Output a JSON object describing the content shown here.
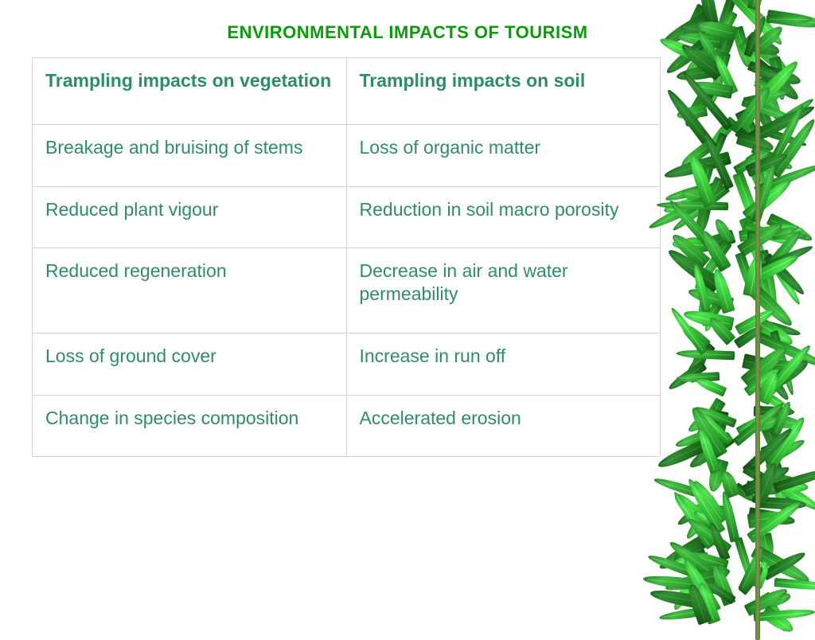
{
  "title": {
    "text": "ENVIRONMENTAL IMPACTS OF TOURISM",
    "color": "#0b9b0b",
    "fontsize": 22
  },
  "table": {
    "text_color": "#2f8c6a",
    "header_color": "#2f8c6a",
    "border_color": "#cfd6d2",
    "cell_fontsize": 23,
    "columns": [
      "Trampling impacts on vegetation",
      "Trampling impacts on soil"
    ],
    "rows": [
      [
        "Breakage and bruising of stems",
        "Loss of organic matter"
      ],
      [
        "Reduced plant vigour",
        "Reduction in soil macro porosity"
      ],
      [
        "Reduced regeneration",
        "Decrease in air and water permeability"
      ],
      [
        "Loss of ground cover",
        "Increase in run off"
      ],
      [
        "Change in species composition",
        "Accelerated erosion"
      ]
    ]
  },
  "decoration": {
    "type": "bamboo-foliage",
    "position": "right-edge",
    "colors": [
      "#1b6b1b",
      "#2da52d",
      "#43c143",
      "#2a8a2a"
    ]
  }
}
